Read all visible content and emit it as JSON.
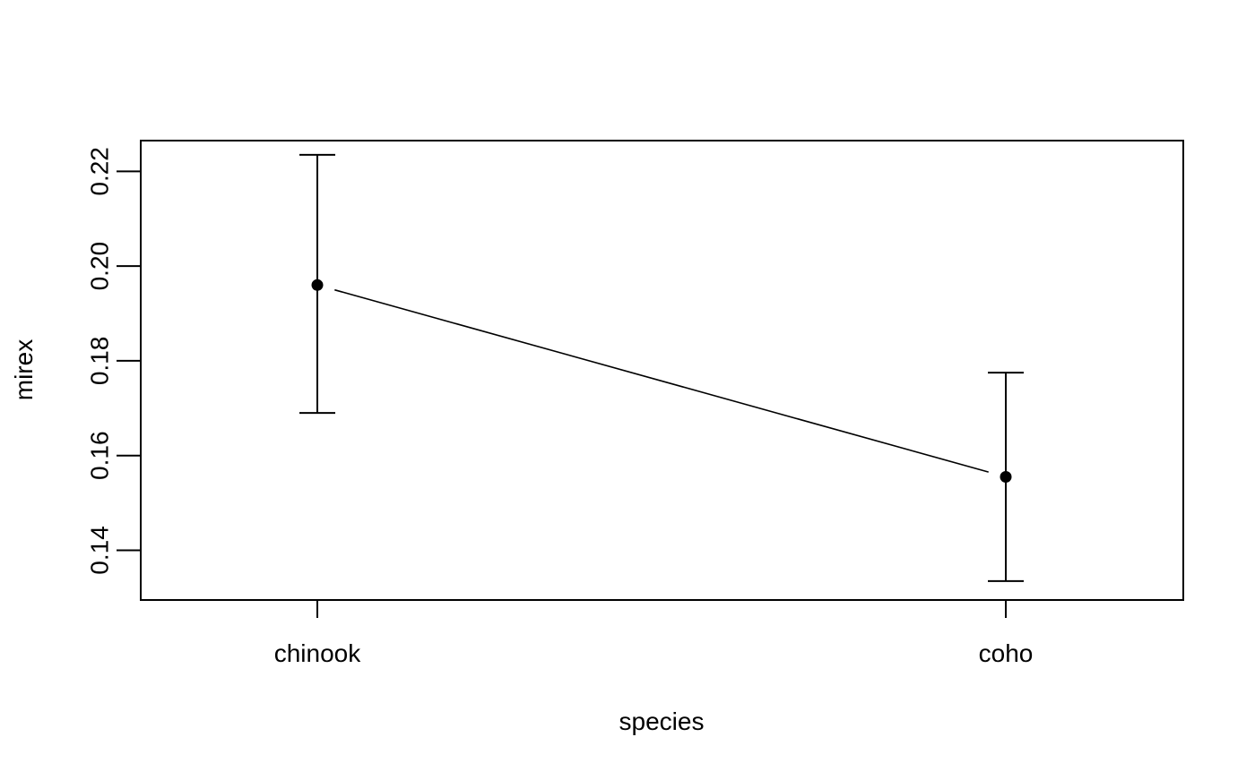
{
  "chart_data": {
    "type": "line",
    "title": "",
    "xlabel": "species",
    "ylabel": "mirex",
    "categories": [
      "chinook",
      "coho"
    ],
    "series": [
      {
        "values": [
          0.196,
          0.1555
        ],
        "lower": [
          0.169,
          0.1335
        ],
        "upper": [
          0.2235,
          0.1775
        ],
        "marker": "filled-circle",
        "color": "#000000"
      }
    ],
    "yticks": [
      "0.14",
      "0.16",
      "0.18",
      "0.20",
      "0.22"
    ],
    "ylim": [
      0.1295,
      0.2265
    ],
    "grid": false,
    "legend": "none",
    "error_bars": true
  }
}
